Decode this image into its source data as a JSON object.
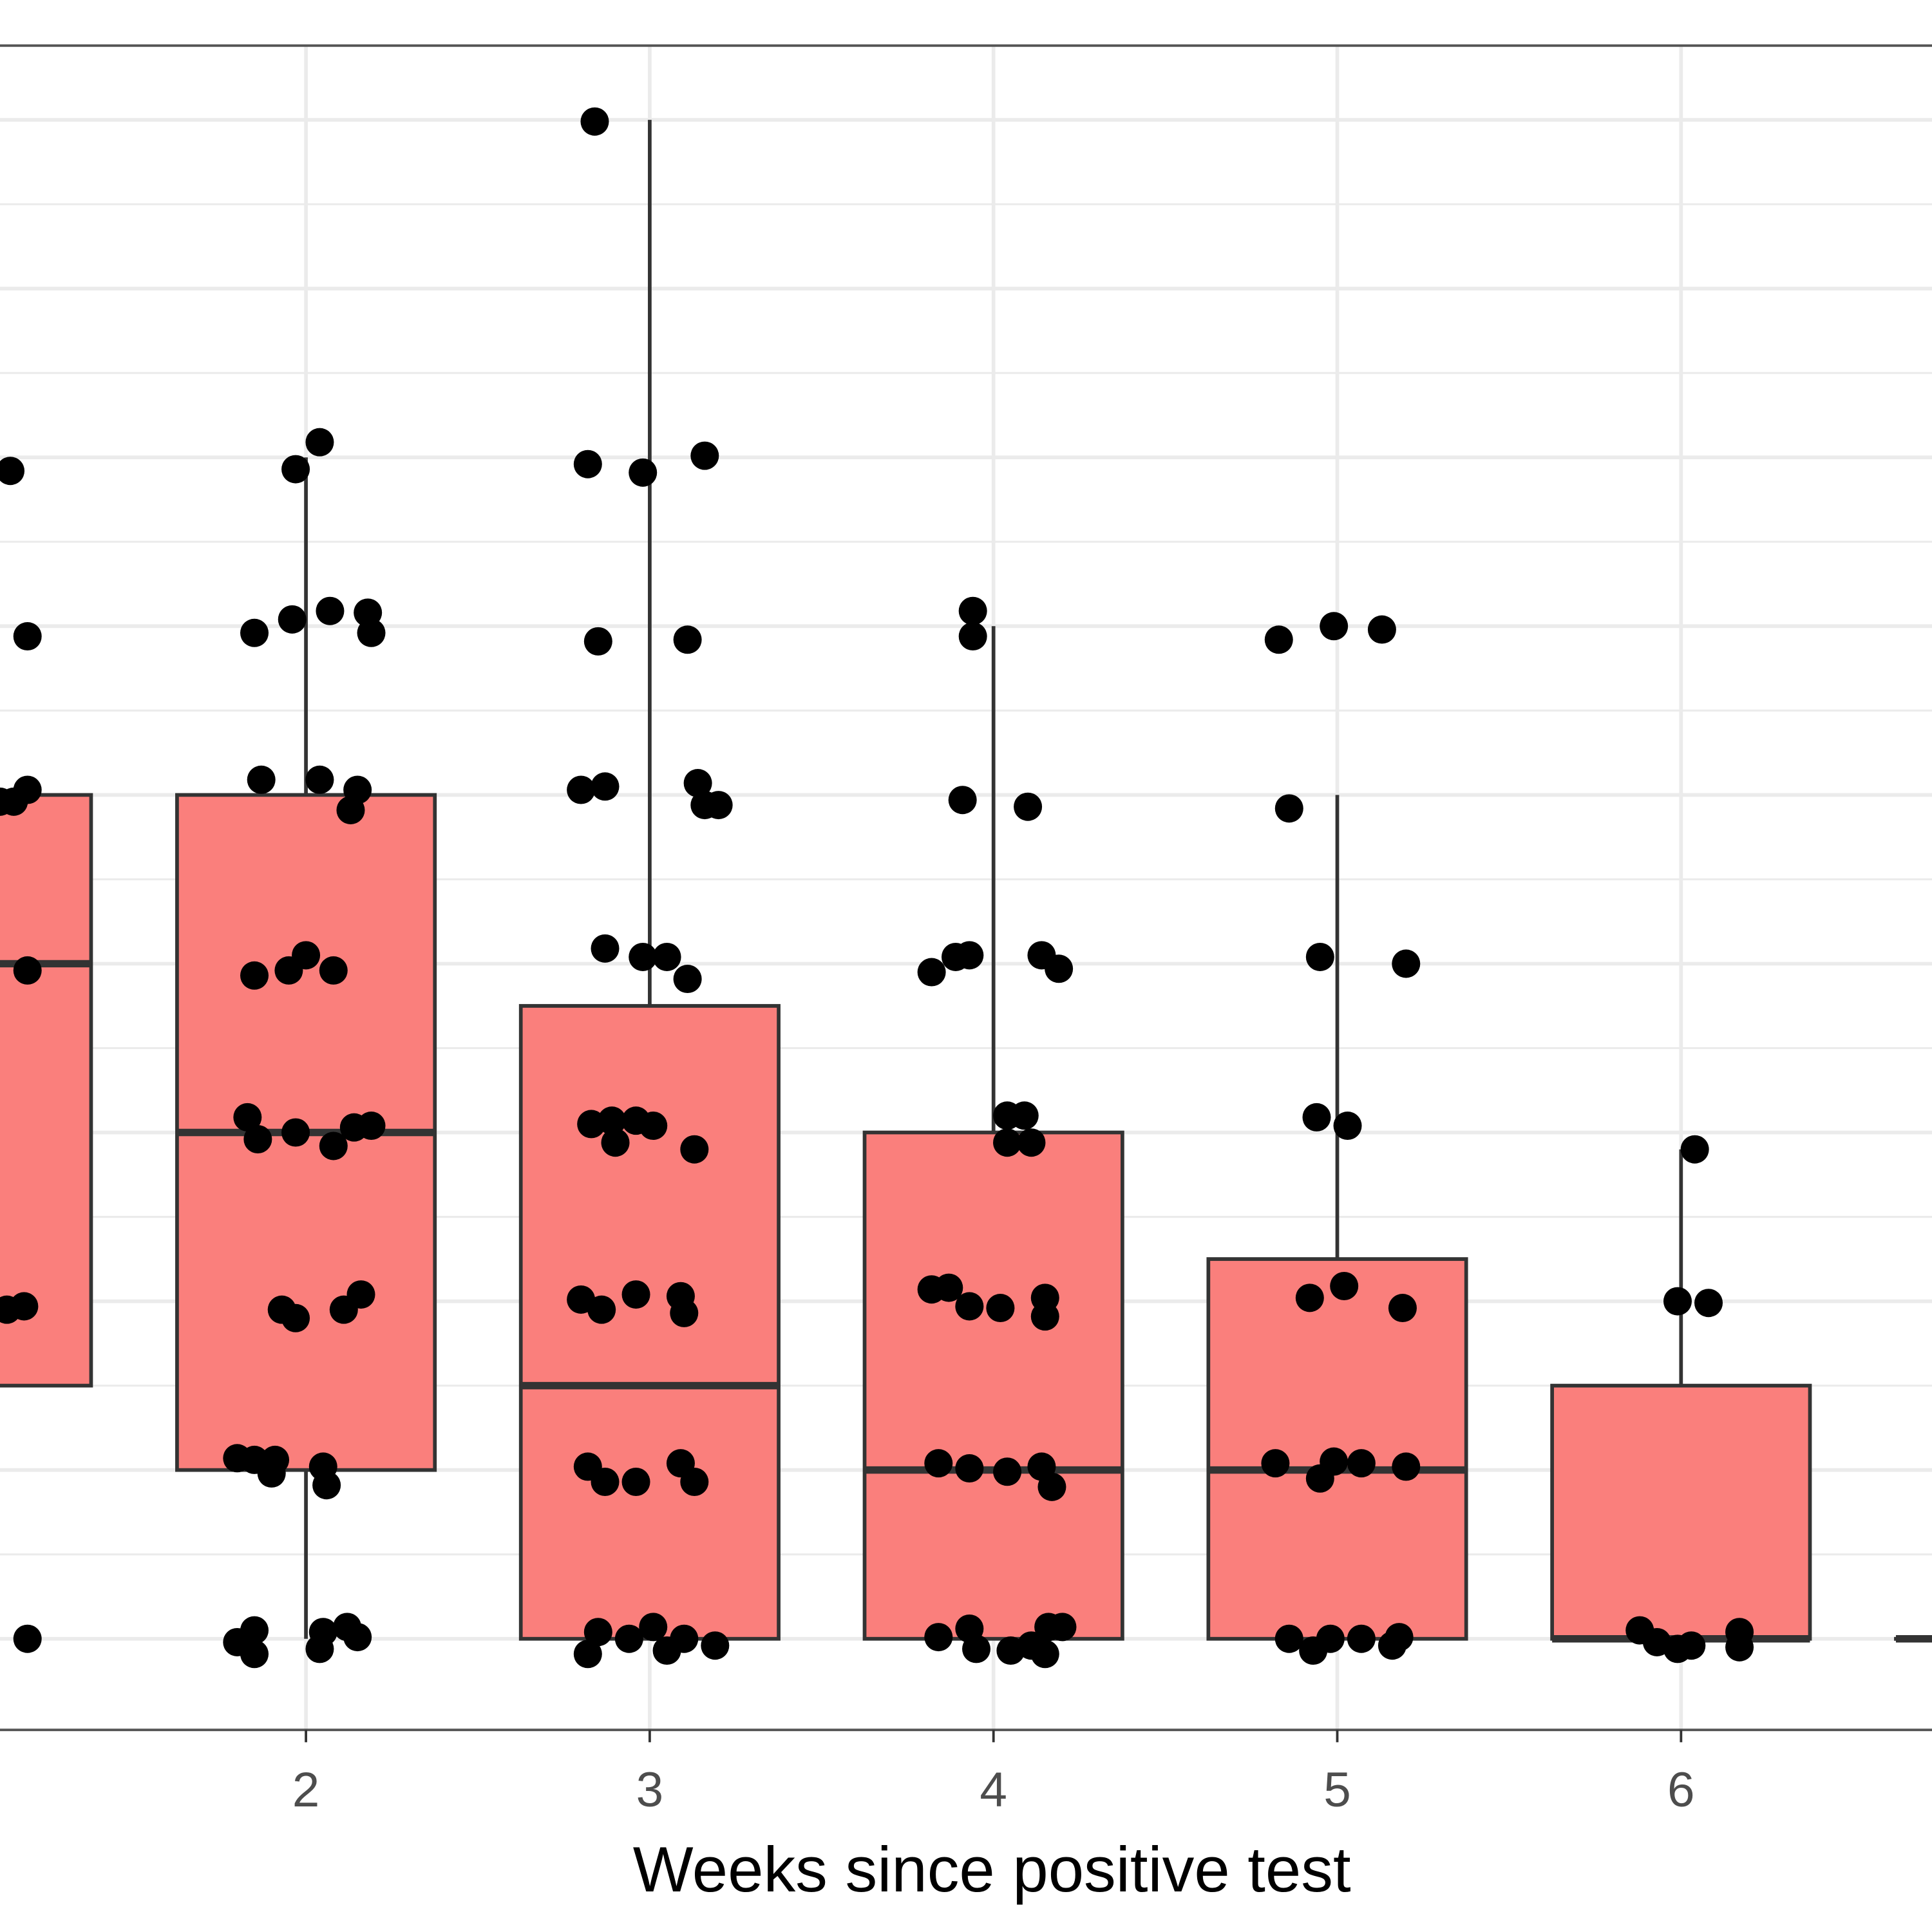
{
  "chart_data": {
    "type": "boxplot",
    "title": "",
    "xlabel": "Weeks since positive test",
    "ylabel": "",
    "x_tick_labels": [
      "2",
      "3",
      "4",
      "5",
      "6"
    ],
    "xlim": [
      1.11,
      6.73
    ],
    "ylim": [
      -0.54,
      9.44
    ],
    "grid": true,
    "colors": {
      "box_fill": "#fa7f7c",
      "box_outline": "#333333",
      "points": "#000000",
      "grid": "#ebebeb",
      "border": "#555555"
    },
    "boxes": [
      {
        "week": 1,
        "min": 0,
        "q1": 1.5,
        "median": 4,
        "q3": 5,
        "max": 7
      },
      {
        "week": 2,
        "min": 0,
        "q1": 1,
        "median": 3,
        "q3": 5,
        "max": 7
      },
      {
        "week": 3,
        "min": 0,
        "q1": 0,
        "median": 1.5,
        "q3": 3.75,
        "max": 9
      },
      {
        "week": 4,
        "min": 0,
        "q1": 0,
        "median": 1,
        "q3": 3,
        "max": 6
      },
      {
        "week": 5,
        "min": 0,
        "q1": 0,
        "median": 1,
        "q3": 2.25,
        "max": 5
      },
      {
        "week": 6,
        "min": 0,
        "q1": 0,
        "median": 0,
        "q3": 1.5,
        "max": 2.9
      },
      {
        "week": 7,
        "min": 0,
        "q1": 0,
        "median": 0,
        "q3": 0,
        "max": 0
      }
    ],
    "points": [
      [
        1.14,
        6.92
      ],
      [
        1.19,
        5.94
      ],
      [
        1.11,
        4.96
      ],
      [
        1.15,
        4.96
      ],
      [
        1.19,
        5.03
      ],
      [
        1.19,
        3.96
      ],
      [
        1.13,
        1.95
      ],
      [
        1.18,
        1.97
      ],
      [
        1.19,
        0
      ],
      [
        1.97,
        6.93
      ],
      [
        2.04,
        7.09
      ],
      [
        1.85,
        5.96
      ],
      [
        1.96,
        6.04
      ],
      [
        2.07,
        6.09
      ],
      [
        2.18,
        6.08
      ],
      [
        2.19,
        5.96
      ],
      [
        1.87,
        5.09
      ],
      [
        2.04,
        5.09
      ],
      [
        2.15,
        5.03
      ],
      [
        2.13,
        4.91
      ],
      [
        1.85,
        3.93
      ],
      [
        1.95,
        3.96
      ],
      [
        2.0,
        4.05
      ],
      [
        2.08,
        3.96
      ],
      [
        1.83,
        3.09
      ],
      [
        1.86,
        2.96
      ],
      [
        1.97,
        3.0
      ],
      [
        2.08,
        2.92
      ],
      [
        2.14,
        3.03
      ],
      [
        2.19,
        3.04
      ],
      [
        1.93,
        1.95
      ],
      [
        1.97,
        1.9
      ],
      [
        2.11,
        1.95
      ],
      [
        2.16,
        2.04
      ],
      [
        1.8,
        1.07
      ],
      [
        1.85,
        1.06
      ],
      [
        1.91,
        1.06
      ],
      [
        1.9,
        0.98
      ],
      [
        2.05,
        1.02
      ],
      [
        2.06,
        0.91
      ],
      [
        1.8,
        -0.02
      ],
      [
        1.85,
        0.05
      ],
      [
        1.85,
        -0.09
      ],
      [
        2.04,
        -0.06
      ],
      [
        2.05,
        0.04
      ],
      [
        2.12,
        0.07
      ],
      [
        2.15,
        0.01
      ],
      [
        2.84,
        8.99
      ],
      [
        2.82,
        6.96
      ],
      [
        2.98,
        6.91
      ],
      [
        3.16,
        7.01
      ],
      [
        2.85,
        5.91
      ],
      [
        3.11,
        5.92
      ],
      [
        2.8,
        5.03
      ],
      [
        2.87,
        5.05
      ],
      [
        3.14,
        5.07
      ],
      [
        3.16,
        4.94
      ],
      [
        3.2,
        4.94
      ],
      [
        2.87,
        4.09
      ],
      [
        2.98,
        4.04
      ],
      [
        3.05,
        4.04
      ],
      [
        3.11,
        3.91
      ],
      [
        2.83,
        3.05
      ],
      [
        2.89,
        3.07
      ],
      [
        2.96,
        3.07
      ],
      [
        3.01,
        3.04
      ],
      [
        2.9,
        2.94
      ],
      [
        3.13,
        2.9
      ],
      [
        2.8,
        2.01
      ],
      [
        2.86,
        1.95
      ],
      [
        2.96,
        2.04
      ],
      [
        3.09,
        2.03
      ],
      [
        3.1,
        1.93
      ],
      [
        2.82,
        1.02
      ],
      [
        2.87,
        0.93
      ],
      [
        2.96,
        0.93
      ],
      [
        3.09,
        1.04
      ],
      [
        3.13,
        0.93
      ],
      [
        2.82,
        -0.09
      ],
      [
        2.85,
        0.04
      ],
      [
        2.94,
        0
      ],
      [
        3.01,
        0.07
      ],
      [
        3.05,
        -0.07
      ],
      [
        3.1,
        0
      ],
      [
        3.19,
        -0.04
      ],
      [
        3.94,
        6.09
      ],
      [
        3.94,
        5.94
      ],
      [
        3.91,
        4.97
      ],
      [
        4.1,
        4.93
      ],
      [
        3.82,
        3.95
      ],
      [
        3.89,
        4.04
      ],
      [
        3.93,
        4.05
      ],
      [
        4.14,
        4.05
      ],
      [
        4.19,
        3.97
      ],
      [
        4.04,
        3.1
      ],
      [
        4.09,
        3.1
      ],
      [
        4.04,
        2.94
      ],
      [
        4.11,
        2.94
      ],
      [
        3.82,
        2.07
      ],
      [
        3.87,
        2.08
      ],
      [
        3.93,
        1.97
      ],
      [
        4.02,
        1.96
      ],
      [
        4.15,
        2.02
      ],
      [
        4.15,
        1.91
      ],
      [
        3.84,
        1.04
      ],
      [
        3.93,
        1.01
      ],
      [
        4.04,
        0.99
      ],
      [
        4.14,
        1.02
      ],
      [
        4.17,
        0.9
      ],
      [
        3.84,
        0.01
      ],
      [
        3.93,
        0.06
      ],
      [
        3.95,
        -0.06
      ],
      [
        4.05,
        -0.07
      ],
      [
        4.11,
        -0.04
      ],
      [
        4.16,
        0.07
      ],
      [
        4.2,
        0.07
      ],
      [
        4.15,
        -0.09
      ],
      [
        4.83,
        5.92
      ],
      [
        4.99,
        6.0
      ],
      [
        5.13,
        5.98
      ],
      [
        4.86,
        4.92
      ],
      [
        4.95,
        4.04
      ],
      [
        5.2,
        4.0
      ],
      [
        4.94,
        3.09
      ],
      [
        5.03,
        3.04
      ],
      [
        4.92,
        2.02
      ],
      [
        5.02,
        2.09
      ],
      [
        5.19,
        1.96
      ],
      [
        4.82,
        1.04
      ],
      [
        4.95,
        0.95
      ],
      [
        4.99,
        1.05
      ],
      [
        5.07,
        1.04
      ],
      [
        5.2,
        1.02
      ],
      [
        4.86,
        0
      ],
      [
        4.93,
        -0.07
      ],
      [
        4.98,
        0
      ],
      [
        5.07,
        0
      ],
      [
        5.16,
        -0.04
      ],
      [
        5.18,
        0.01
      ],
      [
        6.04,
        2.9
      ],
      [
        5.99,
        2.0
      ],
      [
        6.08,
        1.99
      ],
      [
        5.88,
        0.05
      ],
      [
        5.93,
        -0.02
      ],
      [
        5.99,
        -0.06
      ],
      [
        6.03,
        -0.04
      ],
      [
        6.17,
        0.04
      ],
      [
        6.17,
        -0.05
      ]
    ]
  }
}
